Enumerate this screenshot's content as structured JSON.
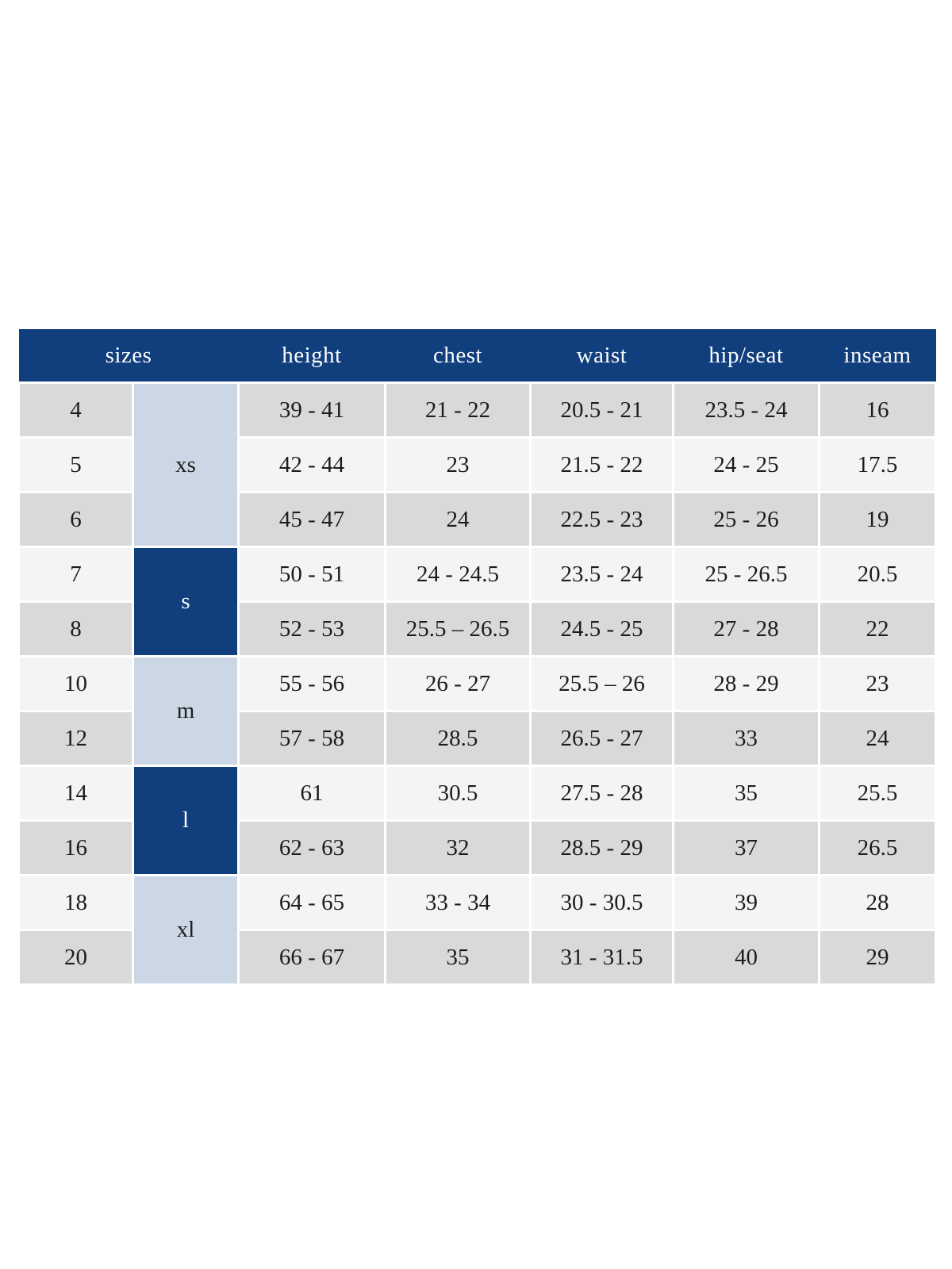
{
  "colors": {
    "header_blue": "#113e7c",
    "group_light_blue": "#ccd7e5",
    "row_grey": "#d9d9d9",
    "row_light": "#f4f4f4",
    "header_text": "#fbfcfe",
    "body_text": "#1c1c1c",
    "page_background": "#ffffff"
  },
  "table": {
    "header": {
      "sizes_label": "sizes",
      "columns": [
        "height",
        "chest",
        "waist",
        "hip/seat",
        "inseam"
      ]
    },
    "groups": [
      {
        "label": "xs",
        "style": "light",
        "row_span": 3
      },
      {
        "label": "s",
        "style": "dark",
        "row_span": 2
      },
      {
        "label": "m",
        "style": "light",
        "row_span": 2
      },
      {
        "label": "l",
        "style": "dark",
        "row_span": 2
      },
      {
        "label": "xl",
        "style": "light",
        "row_span": 2
      }
    ],
    "rows": [
      {
        "size": "4",
        "height": "39 - 41",
        "chest": "21 - 22",
        "waist": "20.5 - 21",
        "hip_seat": "23.5 - 24",
        "inseam": "16"
      },
      {
        "size": "5",
        "height": "42 - 44",
        "chest": "23",
        "waist": "21.5 - 22",
        "hip_seat": "24 - 25",
        "inseam": "17.5"
      },
      {
        "size": "6",
        "height": "45 - 47",
        "chest": "24",
        "waist": "22.5 - 23",
        "hip_seat": "25 - 26",
        "inseam": "19"
      },
      {
        "size": "7",
        "height": "50 - 51",
        "chest": "24 - 24.5",
        "waist": "23.5 - 24",
        "hip_seat": "25 - 26.5",
        "inseam": "20.5"
      },
      {
        "size": "8",
        "height": "52 - 53",
        "chest": "25.5 – 26.5",
        "waist": "24.5 - 25",
        "hip_seat": "27 - 28",
        "inseam": "22"
      },
      {
        "size": "10",
        "height": "55 - 56",
        "chest": "26 - 27",
        "waist": "25.5 – 26",
        "hip_seat": "28 - 29",
        "inseam": "23"
      },
      {
        "size": "12",
        "height": "57 - 58",
        "chest": "28.5",
        "waist": "26.5 - 27",
        "hip_seat": "33",
        "inseam": "24"
      },
      {
        "size": "14",
        "height": "61",
        "chest": "30.5",
        "waist": "27.5 - 28",
        "hip_seat": "35",
        "inseam": "25.5"
      },
      {
        "size": "16",
        "height": "62 - 63",
        "chest": "32",
        "waist": "28.5 - 29",
        "hip_seat": "37",
        "inseam": "26.5"
      },
      {
        "size": "18",
        "height": "64 - 65",
        "chest": "33 - 34",
        "waist": "30 - 30.5",
        "hip_seat": "39",
        "inseam": "28"
      },
      {
        "size": "20",
        "height": "66 - 67",
        "chest": "35",
        "waist": "31 - 31.5",
        "hip_seat": "40",
        "inseam": "29"
      }
    ]
  }
}
